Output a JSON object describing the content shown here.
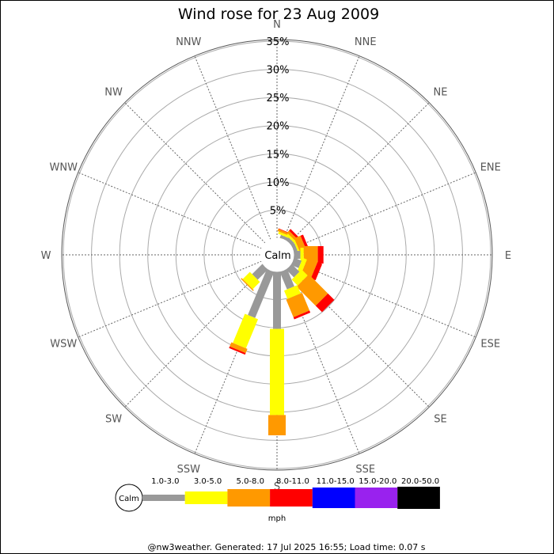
{
  "chart_data": {
    "type": "wind-rose",
    "title": "Wind rose for 23 Aug 2009",
    "directions": [
      "N",
      "NNE",
      "NE",
      "ENE",
      "E",
      "ESE",
      "SE",
      "SSE",
      "S",
      "SSW",
      "SW",
      "WSW",
      "W",
      "WNW",
      "NW",
      "NNW"
    ],
    "radial_ticks": [
      "5%",
      "10%",
      "15%",
      "20%",
      "25%",
      "30%",
      "35%"
    ],
    "radial_tick_values": [
      5,
      10,
      15,
      20,
      25,
      30,
      35
    ],
    "rmax": 35,
    "calm_label": "Calm",
    "legend_units": "mph",
    "speed_bins": [
      {
        "label": "1.0-3.0",
        "color": "#999999"
      },
      {
        "label": "3.0-5.0",
        "color": "#ffff00"
      },
      {
        "label": "5.0-8.0",
        "color": "#ff9900"
      },
      {
        "label": "8.0-11.0",
        "color": "#ff0000"
      },
      {
        "label": "11.0-15.0",
        "color": "#0000ff"
      },
      {
        "label": "15.0-20.0",
        "color": "#9922ee"
      },
      {
        "label": "20.0-50.0",
        "color": "#000000"
      }
    ],
    "segments_percent": {
      "N": [
        0,
        0,
        0,
        0,
        0,
        0,
        0
      ],
      "NNE": [
        0.6,
        0.4,
        0.4,
        0.1,
        0,
        0,
        0
      ],
      "NE": [
        0.7,
        0.4,
        0.5,
        0.4,
        0,
        0,
        0
      ],
      "ENE": [
        0.7,
        0.3,
        1.2,
        0.5,
        0,
        0,
        0
      ],
      "E": [
        1.2,
        0.6,
        2.5,
        1.0,
        0,
        0,
        0
      ],
      "ESE": [
        1.5,
        0.8,
        1.9,
        0.9,
        0,
        0,
        0
      ],
      "SE": [
        2.0,
        1.5,
        4.8,
        1.6,
        0,
        0,
        0
      ],
      "SSE": [
        3.4,
        1.6,
        3.4,
        0.4,
        0,
        0,
        0
      ],
      "S": [
        10.2,
        15.3,
        3.6,
        0,
        0,
        0,
        0
      ],
      "SSW": [
        8.9,
        5.6,
        0.8,
        0.3,
        0,
        0,
        0
      ],
      "SW": [
        2.6,
        1.8,
        0.2,
        0,
        0,
        0,
        0
      ],
      "WSW": [
        0,
        0,
        0,
        0,
        0,
        0,
        0
      ],
      "W": [
        0,
        0,
        0,
        0,
        0,
        0,
        0
      ],
      "WNW": [
        0,
        0,
        0,
        0,
        0,
        0,
        0
      ],
      "NW": [
        0,
        0,
        0,
        0,
        0,
        0,
        0
      ],
      "NNW": [
        0,
        0,
        0,
        0,
        0,
        0,
        0
      ]
    },
    "grid": true
  },
  "footer": "@nw3weather. Generated: 17 Jul 2025 16:55; Load time: 0.07 s"
}
